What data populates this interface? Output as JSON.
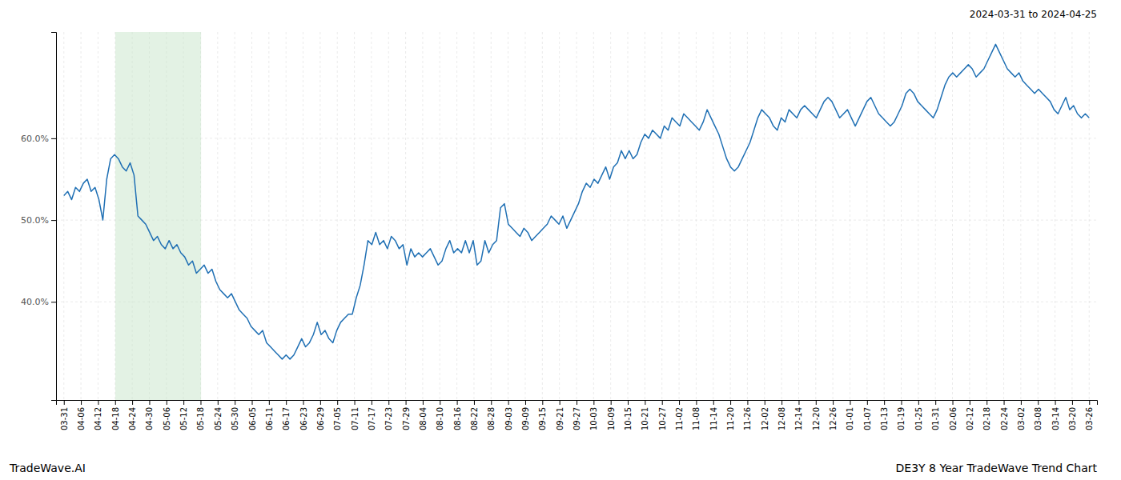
{
  "chart_data": {
    "type": "line",
    "title": "2024-03-31 to 2024-04-25",
    "annotations": [
      "TradeWave.AI",
      "DE3Y 8 Year TradeWave Trend Chart"
    ],
    "color": "#2070b4",
    "grid": true,
    "shaded": {
      "x": [
        13.2,
        35.2
      ],
      "color": "#c8e6c9"
    },
    "xlim": [
      -2,
      265
    ],
    "xticks": [
      {
        "value": 0,
        "label": "03-31"
      },
      {
        "value": 4.3833,
        "label": "04-06"
      },
      {
        "value": 8.7667,
        "label": "04-12"
      },
      {
        "value": 13.15,
        "label": "04-18"
      },
      {
        "value": 17.5333,
        "label": "04-24"
      },
      {
        "value": 21.9167,
        "label": "04-30"
      },
      {
        "value": 26.3,
        "label": "05-06"
      },
      {
        "value": 30.6833,
        "label": "05-12"
      },
      {
        "value": 35.0667,
        "label": "05-18"
      },
      {
        "value": 39.45,
        "label": "05-24"
      },
      {
        "value": 43.8333,
        "label": "05-30"
      },
      {
        "value": 48.2167,
        "label": "06-05"
      },
      {
        "value": 52.6,
        "label": "06-11"
      },
      {
        "value": 56.9833,
        "label": "06-17"
      },
      {
        "value": 61.3667,
        "label": "06-23"
      },
      {
        "value": 65.75,
        "label": "06-29"
      },
      {
        "value": 70.1333,
        "label": "07-05"
      },
      {
        "value": 74.5167,
        "label": "07-11"
      },
      {
        "value": 78.9,
        "label": "07-17"
      },
      {
        "value": 83.2833,
        "label": "07-23"
      },
      {
        "value": 87.6667,
        "label": "07-29"
      },
      {
        "value": 92.05,
        "label": "08-04"
      },
      {
        "value": 96.4333,
        "label": "08-10"
      },
      {
        "value": 100.8167,
        "label": "08-16"
      },
      {
        "value": 105.2,
        "label": "08-22"
      },
      {
        "value": 109.5833,
        "label": "08-28"
      },
      {
        "value": 113.9667,
        "label": "09-03"
      },
      {
        "value": 118.35,
        "label": "09-09"
      },
      {
        "value": 122.7333,
        "label": "09-15"
      },
      {
        "value": 127.1167,
        "label": "09-21"
      },
      {
        "value": 131.5,
        "label": "09-27"
      },
      {
        "value": 135.8833,
        "label": "10-03"
      },
      {
        "value": 140.2667,
        "label": "10-09"
      },
      {
        "value": 144.65,
        "label": "10-15"
      },
      {
        "value": 149.0333,
        "label": "10-21"
      },
      {
        "value": 153.4167,
        "label": "10-27"
      },
      {
        "value": 157.8,
        "label": "11-02"
      },
      {
        "value": 162.1833,
        "label": "11-08"
      },
      {
        "value": 166.5667,
        "label": "11-14"
      },
      {
        "value": 170.95,
        "label": "11-20"
      },
      {
        "value": 175.3333,
        "label": "11-26"
      },
      {
        "value": 179.7167,
        "label": "12-02"
      },
      {
        "value": 184.1,
        "label": "12-08"
      },
      {
        "value": 188.4833,
        "label": "12-14"
      },
      {
        "value": 192.8667,
        "label": "12-20"
      },
      {
        "value": 197.25,
        "label": "12-26"
      },
      {
        "value": 201.6333,
        "label": "01-01"
      },
      {
        "value": 206.0167,
        "label": "01-07"
      },
      {
        "value": 210.4,
        "label": "01-13"
      },
      {
        "value": 214.7833,
        "label": "01-19"
      },
      {
        "value": 219.1667,
        "label": "01-25"
      },
      {
        "value": 223.55,
        "label": "01-31"
      },
      {
        "value": 227.9333,
        "label": "02-06"
      },
      {
        "value": 232.3167,
        "label": "02-12"
      },
      {
        "value": 236.7,
        "label": "02-18"
      },
      {
        "value": 241.0833,
        "label": "02-24"
      },
      {
        "value": 245.4667,
        "label": "03-02"
      },
      {
        "value": 249.85,
        "label": "03-08"
      },
      {
        "value": 254.2333,
        "label": "03-14"
      },
      {
        "value": 258.6167,
        "label": "03-20"
      },
      {
        "value": 263,
        "label": "03-26"
      }
    ],
    "ylim": [
      28,
      73
    ],
    "yticks": [
      {
        "value": 40.0,
        "label": "40.0%"
      },
      {
        "value": 50.0,
        "label": "50.0%"
      },
      {
        "value": 60.0,
        "label": "60.0%"
      }
    ],
    "values": [
      53.0,
      53.5,
      52.5,
      54.0,
      53.5,
      54.5,
      55.0,
      53.5,
      54.0,
      52.5,
      50.0,
      55.0,
      57.5,
      58.0,
      57.5,
      56.5,
      56.0,
      57.0,
      55.5,
      50.5,
      50.0,
      49.5,
      48.5,
      47.5,
      48.0,
      47.0,
      46.5,
      47.5,
      46.5,
      47.0,
      46.0,
      45.5,
      44.5,
      45.0,
      43.5,
      44.0,
      44.5,
      43.5,
      44.0,
      42.5,
      41.5,
      41.0,
      40.5,
      41.0,
      40.0,
      39.0,
      38.5,
      38.0,
      37.0,
      36.5,
      36.0,
      36.5,
      35.0,
      34.5,
      34.0,
      33.5,
      33.0,
      33.5,
      33.0,
      33.5,
      34.5,
      35.5,
      34.5,
      35.0,
      36.0,
      37.5,
      36.0,
      36.5,
      35.5,
      35.0,
      36.5,
      37.5,
      38.0,
      38.5,
      38.5,
      40.5,
      42.0,
      44.5,
      47.5,
      47.0,
      48.5,
      47.0,
      47.5,
      46.5,
      48.0,
      47.5,
      46.5,
      47.0,
      44.5,
      46.5,
      45.5,
      46.0,
      45.5,
      46.0,
      46.5,
      45.5,
      44.5,
      45.0,
      46.5,
      47.5,
      46.0,
      46.5,
      46.0,
      47.5,
      46.0,
      47.5,
      44.5,
      45.0,
      47.5,
      46.0,
      47.0,
      47.5,
      51.5,
      52.0,
      49.5,
      49.0,
      48.5,
      48.0,
      49.0,
      48.5,
      47.5,
      48.0,
      48.5,
      49.0,
      49.5,
      50.5,
      50.0,
      49.5,
      50.5,
      49.0,
      50.0,
      51.0,
      52.0,
      53.5,
      54.5,
      54.0,
      55.0,
      54.5,
      55.5,
      56.5,
      55.0,
      56.5,
      57.0,
      58.5,
      57.5,
      58.5,
      57.5,
      58.0,
      59.5,
      60.5,
      60.0,
      61.0,
      60.5,
      60.0,
      61.5,
      61.0,
      62.5,
      62.0,
      61.5,
      63.0,
      62.5,
      62.0,
      61.5,
      61.0,
      62.0,
      63.5,
      62.5,
      61.5,
      60.5,
      59.0,
      57.5,
      56.5,
      56.0,
      56.5,
      57.5,
      58.5,
      59.5,
      61.0,
      62.5,
      63.5,
      63.0,
      62.5,
      61.5,
      61.0,
      62.5,
      62.0,
      63.5,
      63.0,
      62.5,
      63.5,
      64.0,
      63.5,
      63.0,
      62.5,
      63.5,
      64.5,
      65.0,
      64.5,
      63.5,
      62.5,
      63.0,
      63.5,
      62.5,
      61.5,
      62.5,
      63.5,
      64.5,
      65.0,
      64.0,
      63.0,
      62.5,
      62.0,
      61.5,
      62.0,
      63.0,
      64.0,
      65.5,
      66.0,
      65.5,
      64.5,
      64.0,
      63.5,
      63.0,
      62.5,
      63.5,
      65.0,
      66.5,
      67.5,
      68.0,
      67.5,
      68.0,
      68.5,
      69.0,
      68.5,
      67.5,
      68.0,
      68.5,
      69.5,
      70.5,
      71.5,
      70.5,
      69.5,
      68.5,
      68.0,
      67.5,
      68.0,
      67.0,
      66.5,
      66.0,
      65.5,
      66.0,
      65.5,
      65.0,
      64.5,
      63.5,
      63.0,
      64.0,
      65.0,
      63.5,
      64.0,
      63.0,
      62.5,
      63.0,
      62.5
    ]
  }
}
